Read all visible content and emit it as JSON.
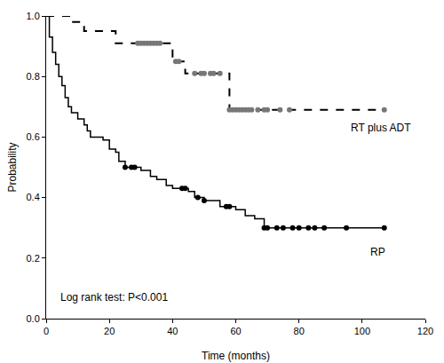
{
  "chart_data": {
    "type": "line",
    "x_label": "Time (months)",
    "y_label": "Probability",
    "xlim": [
      0,
      120
    ],
    "xticks": [
      0,
      20,
      40,
      60,
      80,
      100,
      120
    ],
    "ylim": [
      0,
      1
    ],
    "yticks": [
      {
        "value": 0,
        "label": "0.0"
      },
      {
        "value": 0.2,
        "label": "0.2"
      },
      {
        "value": 0.4,
        "label": "0.4"
      },
      {
        "value": 0.6,
        "label": "0.6"
      },
      {
        "value": 0.8,
        "label": "0.8"
      },
      {
        "value": 1,
        "label": "1.0"
      }
    ],
    "grid": false,
    "series": [
      {
        "name": "RT plus ADT",
        "color": "#000000",
        "line_style": "dash",
        "marker": "circle",
        "x": [
          0,
          8,
          12,
          22,
          40,
          44,
          58,
          107
        ],
        "values": [
          1.0,
          0.98,
          0.95,
          0.91,
          0.85,
          0.81,
          0.69,
          0.69
        ],
        "censored_x": [
          29,
          30,
          31,
          32,
          33,
          34,
          35,
          36,
          41,
          42,
          47,
          49,
          50,
          52,
          53,
          55,
          58,
          59,
          60,
          61,
          62,
          63,
          64,
          65,
          67,
          69,
          70,
          74,
          77,
          107
        ],
        "censored_values": [
          0.91,
          0.91,
          0.91,
          0.91,
          0.91,
          0.91,
          0.91,
          0.91,
          0.85,
          0.85,
          0.81,
          0.81,
          0.81,
          0.81,
          0.81,
          0.81,
          0.69,
          0.69,
          0.69,
          0.69,
          0.69,
          0.69,
          0.69,
          0.69,
          0.69,
          0.69,
          0.69,
          0.69,
          0.69,
          0.69
        ]
      },
      {
        "name": "RP",
        "color": "#000000",
        "line_style": "solid",
        "marker": "circle",
        "x": [
          0,
          1,
          2,
          3,
          4,
          5,
          6,
          7,
          8,
          10,
          12,
          13,
          14,
          18,
          20,
          22,
          23,
          25,
          30,
          33,
          35,
          38,
          40,
          45,
          47,
          50,
          55,
          60,
          63,
          66,
          69,
          107
        ],
        "values": [
          1.0,
          0.93,
          0.88,
          0.84,
          0.8,
          0.77,
          0.73,
          0.7,
          0.68,
          0.66,
          0.64,
          0.62,
          0.6,
          0.59,
          0.56,
          0.55,
          0.52,
          0.5,
          0.49,
          0.47,
          0.46,
          0.44,
          0.43,
          0.42,
          0.4,
          0.39,
          0.37,
          0.36,
          0.34,
          0.33,
          0.3,
          0.3
        ],
        "censored_x": [
          25,
          27,
          28,
          43,
          44,
          48,
          50,
          57,
          58,
          69,
          70,
          73,
          75,
          78,
          80,
          83,
          85,
          88,
          95,
          107
        ],
        "censored_values": [
          0.5,
          0.5,
          0.5,
          0.43,
          0.43,
          0.4,
          0.39,
          0.37,
          0.37,
          0.3,
          0.3,
          0.3,
          0.3,
          0.3,
          0.3,
          0.3,
          0.3,
          0.3,
          0.3,
          0.3
        ]
      }
    ],
    "annotations": [
      {
        "text": "RT plus ADT",
        "x": 106,
        "y": 0.63
      },
      {
        "text": "RP",
        "x": 105,
        "y": 0.22
      },
      {
        "text": "Log rank test: P<0.001",
        "x": 21.5,
        "y": 0.07
      }
    ]
  }
}
